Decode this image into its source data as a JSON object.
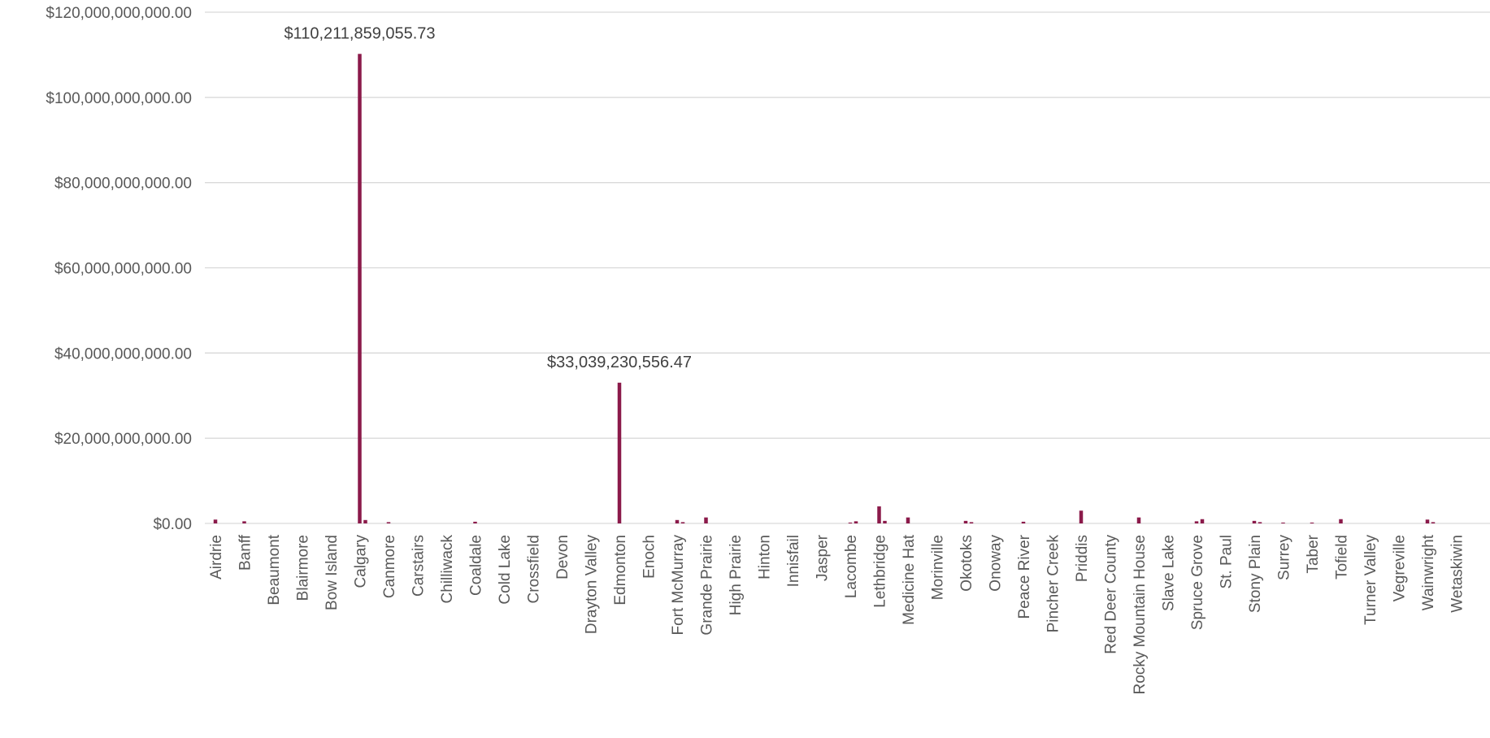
{
  "chart_data": {
    "type": "bar",
    "title": "",
    "xlabel": "",
    "ylabel": "",
    "ylim": [
      0,
      120000000000
    ],
    "grid": true,
    "legend": "none",
    "y_ticks": [
      {
        "value": 0,
        "label": "$0.00"
      },
      {
        "value": 20000000000,
        "label": "$20,000,000,000.00"
      },
      {
        "value": 40000000000,
        "label": "$40,000,000,000.00"
      },
      {
        "value": 60000000000,
        "label": "$60,000,000,000.00"
      },
      {
        "value": 80000000000,
        "label": "$80,000,000,000.00"
      },
      {
        "value": 100000000000,
        "label": "$100,000,000,000.00"
      },
      {
        "value": 120000000000,
        "label": "$120,000,000,000.00"
      }
    ],
    "categories": [
      "Airdrie",
      "Banff",
      "Beaumont",
      "Blairmore",
      "Bow Island",
      "Calgary",
      "Canmore",
      "Carstairs",
      "Chilliwack",
      "Coaldale",
      "Cold Lake",
      "Crossfield",
      "Devon",
      "Drayton Valley",
      "Edmonton",
      "Enoch",
      "Fort McMurray",
      "Grande Prairie",
      "High Prairie",
      "Hinton",
      "Innisfail",
      "Jasper",
      "Lacombe",
      "Lethbridge",
      "Medicine Hat",
      "Morinville",
      "Okotoks",
      "Onoway",
      "Peace River",
      "Pincher Creek",
      "Priddis",
      "Red Deer County",
      "Rocky Mountain House",
      "Slave Lake",
      "Spruce Grove",
      "St. Paul",
      "Stony Plain",
      "Surrey",
      "Taber",
      "Tofield",
      "Turner Valley",
      "Vegreville",
      "Wainwright",
      "Wetaskiwin"
    ],
    "series": [
      {
        "name": "",
        "color": "#8b1a4a",
        "values": [
          [
            900000000,
            0
          ],
          [
            500000000,
            0
          ],
          [
            0,
            0
          ],
          [
            0,
            0
          ],
          [
            0,
            0
          ],
          [
            110211859055.73,
            800000000
          ],
          [
            300000000,
            0
          ],
          [
            0,
            0
          ],
          [
            0,
            0
          ],
          [
            400000000,
            0
          ],
          [
            0,
            0
          ],
          [
            0,
            0
          ],
          [
            0,
            0
          ],
          [
            0,
            0
          ],
          [
            33039230556.47,
            0
          ],
          [
            0,
            0
          ],
          [
            800000000,
            300000000
          ],
          [
            1400000000,
            0
          ],
          [
            0,
            0
          ],
          [
            0,
            0
          ],
          [
            0,
            0
          ],
          [
            0,
            0
          ],
          [
            200000000,
            500000000
          ],
          [
            4000000000,
            600000000
          ],
          [
            1400000000,
            0
          ],
          [
            0,
            0
          ],
          [
            600000000,
            300000000
          ],
          [
            0,
            0
          ],
          [
            400000000,
            0
          ],
          [
            0,
            0
          ],
          [
            3000000000,
            0
          ],
          [
            0,
            0
          ],
          [
            1400000000,
            0
          ],
          [
            0,
            0
          ],
          [
            500000000,
            1000000000
          ],
          [
            0,
            0
          ],
          [
            600000000,
            300000000
          ],
          [
            200000000,
            0
          ],
          [
            200000000,
            0
          ],
          [
            1000000000,
            0
          ],
          [
            0,
            0
          ],
          [
            0,
            0
          ],
          [
            900000000,
            300000000
          ],
          [
            0,
            0
          ]
        ]
      }
    ],
    "data_labels": [
      {
        "category": "Calgary",
        "text": "$110,211,859,055.73",
        "value": 110211859055.73
      },
      {
        "category": "Edmonton",
        "text": "$33,039,230,556.47",
        "value": 33039230556.47
      }
    ]
  }
}
